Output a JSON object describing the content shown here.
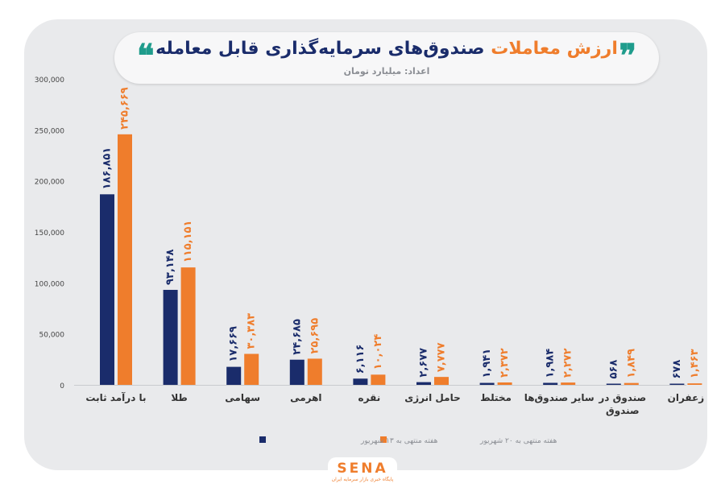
{
  "header": {
    "title_accent": "ارزش معاملات",
    "title_main": "صندوق‌های سرمایه‌گذاری قابل معامله",
    "subtitle": "اعداد: میلیارد تومان",
    "quote_open": "❝",
    "quote_close": "❞"
  },
  "logo": {
    "text": "SENA",
    "subtext": "پایگاه خبری بازار سرمایه ایران"
  },
  "colors": {
    "series1": "#1a2c6b",
    "series2": "#ef7d2c",
    "background": "#e9eaec",
    "accent_green": "#1f9c8c"
  },
  "chart_data": {
    "type": "bar",
    "title": "ارزش معاملات صندوق‌های سرمایه‌گذاری قابل معامله",
    "ylim": [
      0,
      300000
    ],
    "yticks": [
      0,
      50000,
      100000,
      150000,
      200000,
      250000,
      300000
    ],
    "ytick_labels": [
      "0",
      "50,000",
      "100,000",
      "150,000",
      "200,000",
      "250,000",
      "300,000"
    ],
    "categories": [
      [
        "با درآمد ثابت"
      ],
      [
        "طلا"
      ],
      [
        "سهامی"
      ],
      [
        "اهرمی"
      ],
      [
        "نقره"
      ],
      [
        "حامل انرژی"
      ],
      [
        "مختلط"
      ],
      [
        "سایر صندوق‌ها"
      ],
      [
        "صندوق در",
        "صندوق"
      ],
      [
        "زعفران"
      ]
    ],
    "series": [
      {
        "name": "هفته منتهی به ۱۳ شهریور",
        "values": [
          186851,
          93148,
          17669,
          24685,
          6116,
          2677,
          1941,
          1984,
          568,
          678
        ],
        "labels": [
          "۱۸۶,۸۵۱",
          "۹۳,۱۴۸",
          "۱۷,۶۶۹",
          "۲۴,۶۸۵",
          "۶,۱۱۶",
          "۲,۶۷۷",
          "۱,۹۴۱",
          "۱,۹۸۴",
          "۵۶۸",
          "۶۷۸"
        ]
      },
      {
        "name": "هفته منتهی به ۲۰ شهریور",
        "values": [
          245669,
          115151,
          30383,
          25695,
          10024,
          7777,
          2372,
          2272,
          1849,
          1463
        ],
        "labels": [
          "۲۴۵,۶۶۹",
          "۱۱۵,۱۵۱",
          "۳۰,۳۸۳",
          "۲۵,۶۹۵",
          "۱۰,۰۲۴",
          "۷,۷۷۷",
          "۲,۳۷۲",
          "۲,۲۷۲",
          "۱,۸۴۹",
          "۱,۴۶۳"
        ]
      }
    ],
    "legend_position": "bottom",
    "grid": false
  }
}
